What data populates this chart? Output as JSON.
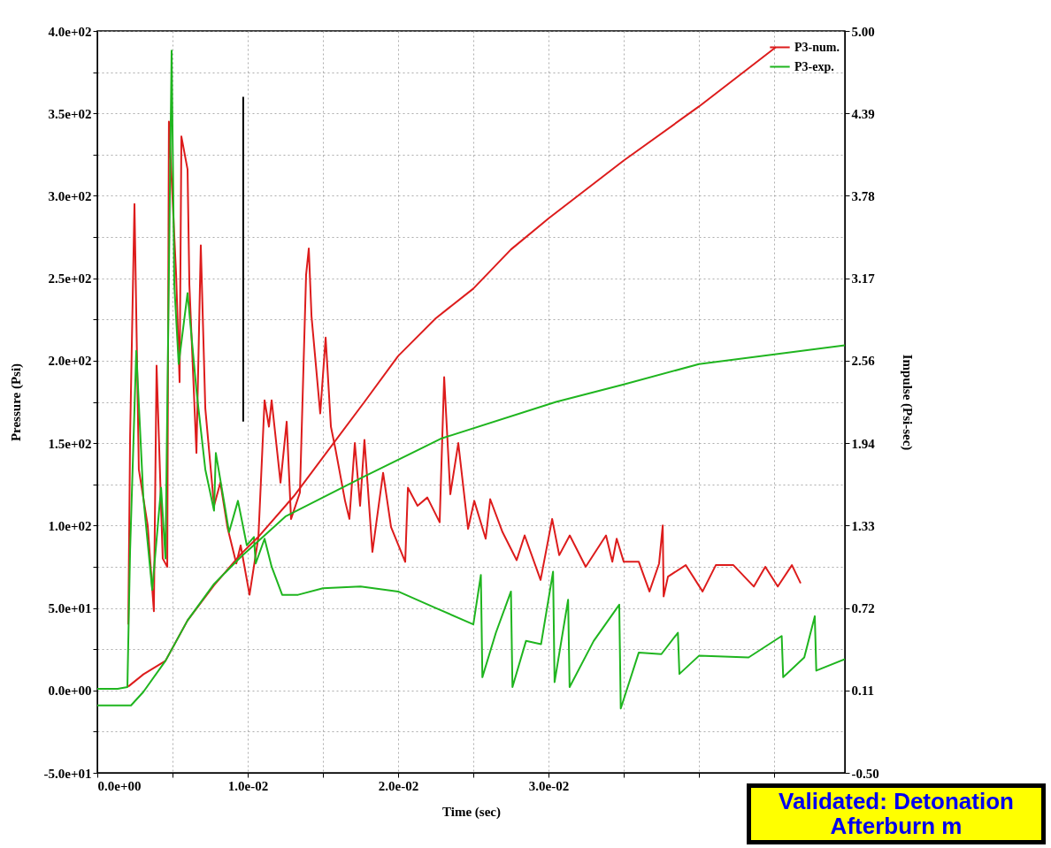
{
  "chart_data": {
    "type": "line",
    "xlabel": "Time (sec)",
    "ylabel": "Pressure (Psi)",
    "y2label": "Impulse (Psi-sec)",
    "xlim": [
      0,
      0.0497
    ],
    "xticks": [
      {
        "value": 0,
        "label": "0.0e+00"
      },
      {
        "value": 0.005,
        "label": null
      },
      {
        "value": 0.01,
        "label": "1.0e-02"
      },
      {
        "value": 0.015,
        "label": null
      },
      {
        "value": 0.02,
        "label": "2.0e-02"
      },
      {
        "value": 0.025,
        "label": null
      },
      {
        "value": 0.03,
        "label": "3.0e-02"
      },
      {
        "value": 0.035,
        "label": null
      },
      {
        "value": 0.04,
        "label": null
      },
      {
        "value": 0.045,
        "label": null
      }
    ],
    "ylim": [
      -50,
      400
    ],
    "yticks": [
      {
        "value": -50,
        "label": "-5.0e+01"
      },
      {
        "value": -25,
        "label": null
      },
      {
        "value": 0,
        "label": "0.0e+00"
      },
      {
        "value": 25,
        "label": null
      },
      {
        "value": 50,
        "label": "5.0e+01"
      },
      {
        "value": 75,
        "label": null
      },
      {
        "value": 100,
        "label": "1.0e+02"
      },
      {
        "value": 125,
        "label": null
      },
      {
        "value": 150,
        "label": "1.5e+02"
      },
      {
        "value": 175,
        "label": null
      },
      {
        "value": 200,
        "label": "2.0e+02"
      },
      {
        "value": 225,
        "label": null
      },
      {
        "value": 250,
        "label": "2.5e+02"
      },
      {
        "value": 275,
        "label": null
      },
      {
        "value": 300,
        "label": "3.0e+02"
      },
      {
        "value": 325,
        "label": null
      },
      {
        "value": 350,
        "label": "3.5e+02"
      },
      {
        "value": 375,
        "label": null
      },
      {
        "value": 400,
        "label": "4.0e+02"
      }
    ],
    "y2lim": [
      -0.5,
      5.0
    ],
    "y2ticks": [
      {
        "value": -0.5,
        "label": "-0.50"
      },
      {
        "value": 0.111,
        "label": "0.11"
      },
      {
        "value": 0.722,
        "label": "0.72"
      },
      {
        "value": 1.333,
        "label": "1.33"
      },
      {
        "value": 1.944,
        "label": "1.94"
      },
      {
        "value": 2.556,
        "label": "2.56"
      },
      {
        "value": 3.167,
        "label": "3.17"
      },
      {
        "value": 3.778,
        "label": "3.78"
      },
      {
        "value": 4.389,
        "label": "4.39"
      },
      {
        "value": 5.0,
        "label": "5.00"
      }
    ],
    "grid": true,
    "legend": "top right",
    "line_style": "solid",
    "annotations": [
      "Validated: Detonation Afterburn m"
    ],
    "series": [
      {
        "name": "P3-num.",
        "color": "#dd1c1c",
        "x": [
          0.00206,
          0.00218,
          0.00247,
          0.00276,
          0.00335,
          0.00376,
          0.00394,
          0.00435,
          0.00465,
          0.00476,
          0.00524,
          0.00547,
          0.00559,
          0.006,
          0.00612,
          0.00659,
          0.00688,
          0.00718,
          0.00776,
          0.00818,
          0.00865,
          0.00924,
          0.00953,
          0.01012,
          0.01071,
          0.01112,
          0.01141,
          0.01159,
          0.01218,
          0.01259,
          0.01288,
          0.01347,
          0.01388,
          0.01406,
          0.01424,
          0.01482,
          0.01518,
          0.01553,
          0.01582,
          0.01647,
          0.01676,
          0.01712,
          0.01747,
          0.01776,
          0.01829,
          0.019,
          0.01953,
          0.02047,
          0.02065,
          0.02129,
          0.02194,
          0.02276,
          0.02306,
          0.02347,
          0.024,
          0.02465,
          0.02506,
          0.02582,
          0.02612,
          0.02694,
          0.02788,
          0.02841,
          0.02947,
          0.03024,
          0.03071,
          0.03141,
          0.03247,
          0.03382,
          0.03424,
          0.03453,
          0.035,
          0.036,
          0.03671,
          0.03735,
          0.03759,
          0.03765,
          0.03794,
          0.03912,
          0.04024,
          0.04112,
          0.04229,
          0.04365,
          0.04441,
          0.04524,
          0.04618,
          0.04676
        ],
        "values": [
          40,
          154,
          295,
          134,
          100,
          48,
          197,
          80,
          75,
          345,
          252,
          187,
          336,
          316,
          246,
          144,
          270,
          171,
          112,
          126,
          99,
          77,
          88,
          58,
          93,
          176,
          160,
          176,
          126,
          163,
          104,
          120,
          252,
          268,
          227,
          168,
          214,
          160,
          147,
          115,
          104,
          150,
          112,
          152,
          84,
          132,
          99,
          78,
          123,
          112,
          117,
          102,
          190,
          119,
          150,
          98,
          115,
          92,
          116,
          96,
          79,
          94,
          67,
          104,
          82,
          94,
          75,
          94,
          78,
          92,
          78,
          78,
          60,
          77,
          100,
          57,
          69,
          76,
          60,
          76,
          76,
          63,
          75,
          63,
          76,
          65
        ]
      },
      {
        "name": "P3-exp.",
        "color": "#1fb51f",
        "x": [
          0,
          0.00135,
          0.002,
          0.00218,
          0.00259,
          0.00306,
          0.00365,
          0.00424,
          0.00453,
          0.00494,
          0.00512,
          0.00541,
          0.006,
          0.00659,
          0.00718,
          0.00776,
          0.00788,
          0.00847,
          0.00876,
          0.00935,
          0.00994,
          0.01041,
          0.01053,
          0.01112,
          0.01159,
          0.01229,
          0.01335,
          0.015,
          0.0175,
          0.02,
          0.0225,
          0.025,
          0.0255,
          0.0256,
          0.0265,
          0.0275,
          0.0276,
          0.0285,
          0.0295,
          0.0303,
          0.0304,
          0.0313,
          0.0314,
          0.033,
          0.0347,
          0.0348,
          0.036,
          0.0375,
          0.0386,
          0.0387,
          0.04,
          0.0433,
          0.0455,
          0.0456,
          0.047,
          0.0477,
          0.0478,
          0.0497
        ],
        "values": [
          1,
          1,
          2,
          85,
          206,
          117,
          61,
          123,
          80,
          388,
          246,
          198,
          241,
          182,
          134,
          109,
          144,
          112,
          96,
          115,
          88,
          93,
          77,
          92,
          75,
          58,
          58,
          62,
          63,
          60,
          50,
          40,
          70,
          8,
          35,
          60,
          2,
          30,
          28,
          72,
          5,
          55,
          2,
          30,
          52,
          -11,
          23,
          22,
          35,
          10,
          21,
          20,
          33,
          8,
          20,
          45,
          12,
          19
        ]
      },
      {
        "color": "#dd1c1c",
        "axis": "y2",
        "x": [
          0.00206,
          0.00306,
          0.00453,
          0.006,
          0.00776,
          0.00953,
          0.01071,
          0.01306,
          0.01541,
          0.01776,
          0.02,
          0.0225,
          0.025,
          0.0275,
          0.03,
          0.035,
          0.04,
          0.04512
        ],
        "values": [
          0.14,
          0.23,
          0.33,
          0.63,
          0.89,
          1.12,
          1.25,
          1.55,
          1.9,
          2.25,
          2.59,
          2.87,
          3.09,
          3.38,
          3.61,
          4.04,
          4.44,
          4.88
        ]
      },
      {
        "color": "#1fb51f",
        "axis": "y2",
        "x": [
          0,
          0.00224,
          0.00306,
          0.00453,
          0.006,
          0.00776,
          0.00953,
          0.0125,
          0.0178,
          0.0229,
          0.0305,
          0.035,
          0.04,
          0.0497
        ],
        "values": [
          0.0,
          0.0,
          0.1,
          0.33,
          0.63,
          0.9,
          1.1,
          1.4,
          1.7,
          1.98,
          2.25,
          2.38,
          2.53,
          2.67
        ]
      },
      {
        "color": "#000000",
        "x": [
          0.0097,
          0.0097
        ],
        "values": [
          163,
          360
        ]
      }
    ]
  }
}
